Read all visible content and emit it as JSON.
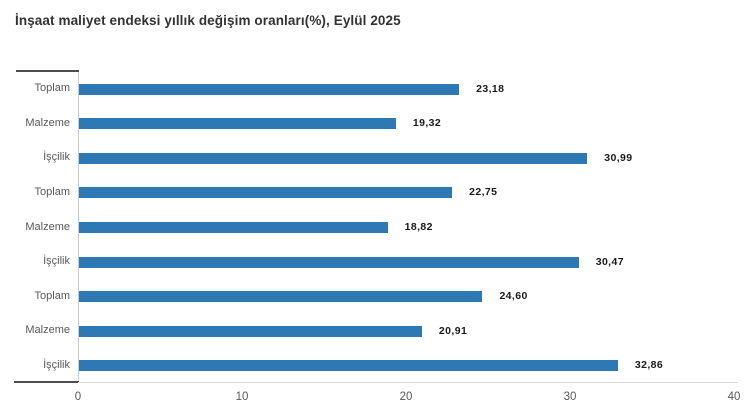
{
  "title": "İnşaat maliyet endeksi yıllık değişim oranları(%), Eylül 2025",
  "colors": {
    "bar": "#2e78b4",
    "title_text": "#333333",
    "category_text": "#595959",
    "value_text": "#1a1a1a",
    "tick_text": "#595959",
    "axis_dark": "#4d4d4d",
    "axis_light": "#d9d9d9",
    "background": "#ffffff"
  },
  "chart_data": {
    "type": "bar",
    "orientation": "horizontal",
    "title": "İnşaat maliyet endeksi yıllık değişim oranları(%), Eylül 2025",
    "categories": [
      "Toplam",
      "Malzeme",
      "İşçilik",
      "Toplam",
      "Malzeme",
      "İşçilik",
      "Toplam",
      "Malzeme",
      "İşçilik"
    ],
    "values": [
      23.18,
      19.32,
      30.99,
      22.75,
      18.82,
      30.47,
      24.6,
      20.91,
      32.86
    ],
    "value_labels": [
      "23,18",
      "19,32",
      "30,99",
      "22,75",
      "18,82",
      "30,47",
      "24,60",
      "20,91",
      "32,86"
    ],
    "xlabel": "",
    "ylabel": "",
    "xlim": [
      0,
      40
    ],
    "x_ticks": [
      "0",
      "10",
      "20",
      "30",
      "40"
    ],
    "grid": false,
    "legend": "none",
    "bar_color": "#2e78b4"
  }
}
